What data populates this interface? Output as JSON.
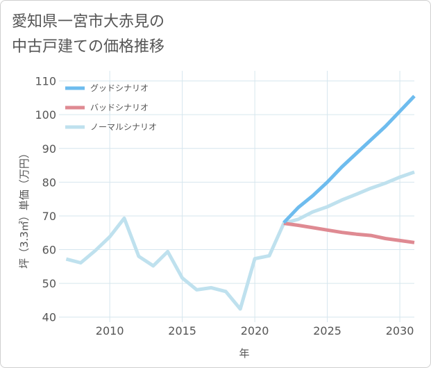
{
  "chart_data": {
    "type": "line",
    "title_lines": [
      "愛知県一宮市大赤見の",
      "中古戸建ての価格推移"
    ],
    "xlabel": "年",
    "ylabel": "坪（3.3㎡）単価（万円）",
    "xlim": [
      2006.5,
      2031
    ],
    "ylim": [
      38.5,
      113
    ],
    "xticks": [
      2010,
      2015,
      2020,
      2025,
      2030
    ],
    "yticks": [
      40,
      50,
      60,
      70,
      80,
      90,
      100,
      110
    ],
    "grid": true,
    "legend_position": "top-left",
    "series": [
      {
        "name": "グッドシナリオ",
        "color": "#6ebcee",
        "x": [
          2022,
          2023,
          2024,
          2025,
          2026,
          2027,
          2028,
          2029,
          2030,
          2031
        ],
        "y": [
          68,
          72.5,
          76,
          80,
          84.5,
          88.5,
          92.5,
          96.5,
          101,
          105.5
        ]
      },
      {
        "name": "バッドシナリオ",
        "color": "#df8a92",
        "x": [
          2022,
          2023,
          2024,
          2025,
          2026,
          2027,
          2028,
          2029,
          2030,
          2031
        ],
        "y": [
          67.8,
          67.2,
          66.5,
          65.8,
          65.1,
          64.6,
          64.2,
          63.3,
          62.7,
          62.1
        ]
      },
      {
        "name": "ノーマルシナリオ",
        "color": "#bfe1ee",
        "x": [
          2007,
          2008,
          2009,
          2010,
          2011,
          2012,
          2013,
          2014,
          2015,
          2016,
          2017,
          2018,
          2019,
          2020,
          2021,
          2022,
          2023,
          2024,
          2025,
          2026,
          2027,
          2028,
          2029,
          2030,
          2031
        ],
        "y": [
          57.2,
          56.1,
          59.7,
          63.8,
          69.3,
          58,
          55.2,
          59.4,
          51.6,
          48.1,
          48.7,
          47.6,
          42.4,
          57.3,
          58.2,
          67.8,
          69,
          71.2,
          72.7,
          74.7,
          76.4,
          78.2,
          79.7,
          81.5,
          83
        ]
      }
    ]
  }
}
